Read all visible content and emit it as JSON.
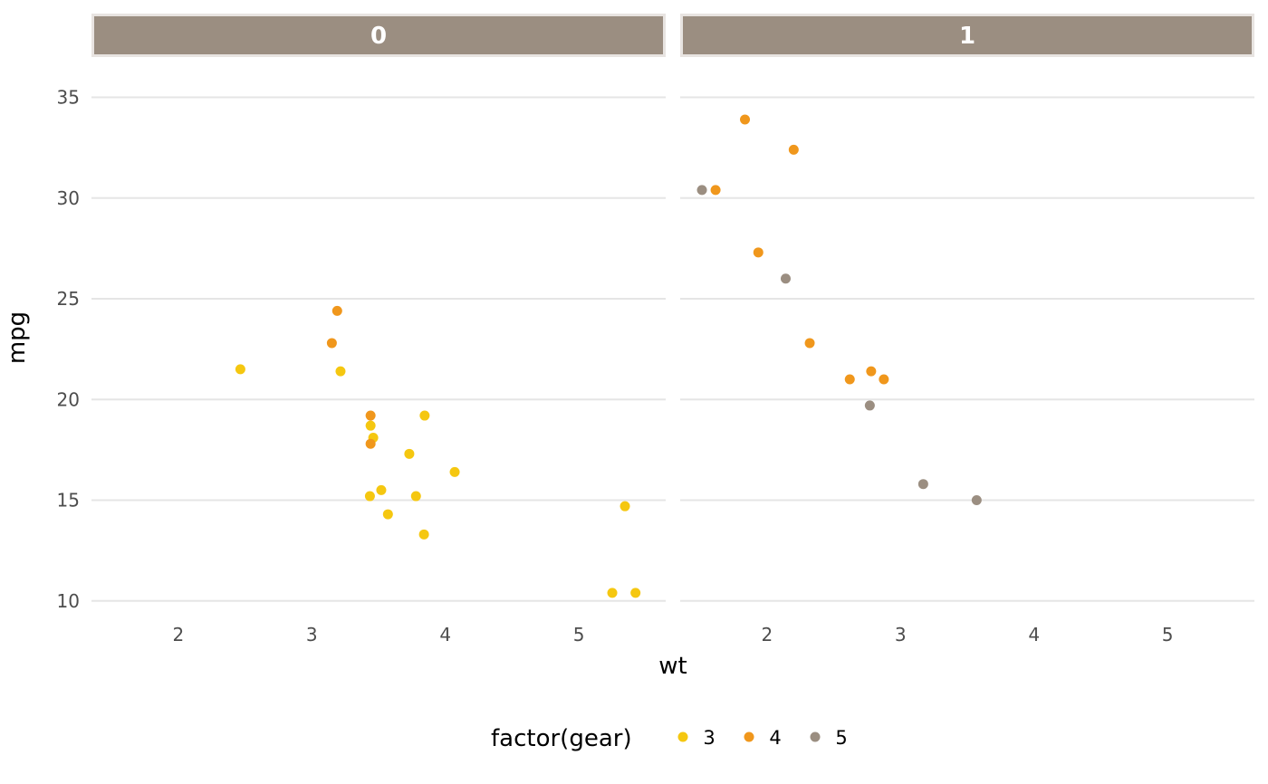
{
  "chart_data": {
    "type": "scatter",
    "facet_variable": "",
    "xlabel": "wt",
    "ylabel": "mpg",
    "xlim": [
      1.35,
      5.65
    ],
    "ylim": [
      9.0,
      37.0
    ],
    "x_ticks": [
      2,
      3,
      4,
      5
    ],
    "x_tick_labels": [
      "2",
      "3",
      "4",
      "5"
    ],
    "y_ticks": [
      10,
      15,
      20,
      25,
      30,
      35
    ],
    "y_tick_labels": [
      "10",
      "15",
      "20",
      "25",
      "30",
      "35"
    ],
    "grid": "horizontal major lines only",
    "legend": {
      "title": "factor(gear)",
      "placement": "bottom",
      "entries": [
        {
          "label": "3",
          "color": "#f5c710"
        },
        {
          "label": "4",
          "color": "#f0971c"
        },
        {
          "label": "5",
          "color": "#9b8e81"
        }
      ]
    },
    "facets": [
      {
        "strip_label": "0",
        "points": [
          {
            "x": 2.465,
            "y": 21.5,
            "gear": "3"
          },
          {
            "x": 3.215,
            "y": 21.4,
            "gear": "3"
          },
          {
            "x": 3.44,
            "y": 18.7,
            "gear": "3"
          },
          {
            "x": 3.46,
            "y": 18.1,
            "gear": "3"
          },
          {
            "x": 3.57,
            "y": 14.3,
            "gear": "3"
          },
          {
            "x": 4.07,
            "y": 16.4,
            "gear": "3"
          },
          {
            "x": 3.73,
            "y": 17.3,
            "gear": "3"
          },
          {
            "x": 3.78,
            "y": 15.2,
            "gear": "3"
          },
          {
            "x": 5.25,
            "y": 10.4,
            "gear": "3"
          },
          {
            "x": 5.424,
            "y": 10.4,
            "gear": "3"
          },
          {
            "x": 5.345,
            "y": 14.7,
            "gear": "3"
          },
          {
            "x": 3.52,
            "y": 15.5,
            "gear": "3"
          },
          {
            "x": 3.435,
            "y": 15.2,
            "gear": "3"
          },
          {
            "x": 3.84,
            "y": 13.3,
            "gear": "3"
          },
          {
            "x": 3.845,
            "y": 19.2,
            "gear": "3"
          },
          {
            "x": 3.19,
            "y": 24.4,
            "gear": "4"
          },
          {
            "x": 3.15,
            "y": 22.8,
            "gear": "4"
          },
          {
            "x": 3.44,
            "y": 19.2,
            "gear": "4"
          },
          {
            "x": 3.44,
            "y": 17.8,
            "gear": "4"
          }
        ]
      },
      {
        "strip_label": "1",
        "points": [
          {
            "x": 2.62,
            "y": 21.0,
            "gear": "4"
          },
          {
            "x": 2.875,
            "y": 21.0,
            "gear": "4"
          },
          {
            "x": 2.32,
            "y": 22.8,
            "gear": "4"
          },
          {
            "x": 2.2,
            "y": 32.4,
            "gear": "4"
          },
          {
            "x": 1.615,
            "y": 30.4,
            "gear": "4"
          },
          {
            "x": 1.835,
            "y": 33.9,
            "gear": "4"
          },
          {
            "x": 1.935,
            "y": 27.3,
            "gear": "4"
          },
          {
            "x": 2.78,
            "y": 21.4,
            "gear": "4"
          },
          {
            "x": 2.14,
            "y": 26.0,
            "gear": "5"
          },
          {
            "x": 1.513,
            "y": 30.4,
            "gear": "5"
          },
          {
            "x": 3.17,
            "y": 15.8,
            "gear": "5"
          },
          {
            "x": 2.77,
            "y": 19.7,
            "gear": "5"
          },
          {
            "x": 3.57,
            "y": 15.0,
            "gear": "5"
          }
        ]
      }
    ]
  }
}
